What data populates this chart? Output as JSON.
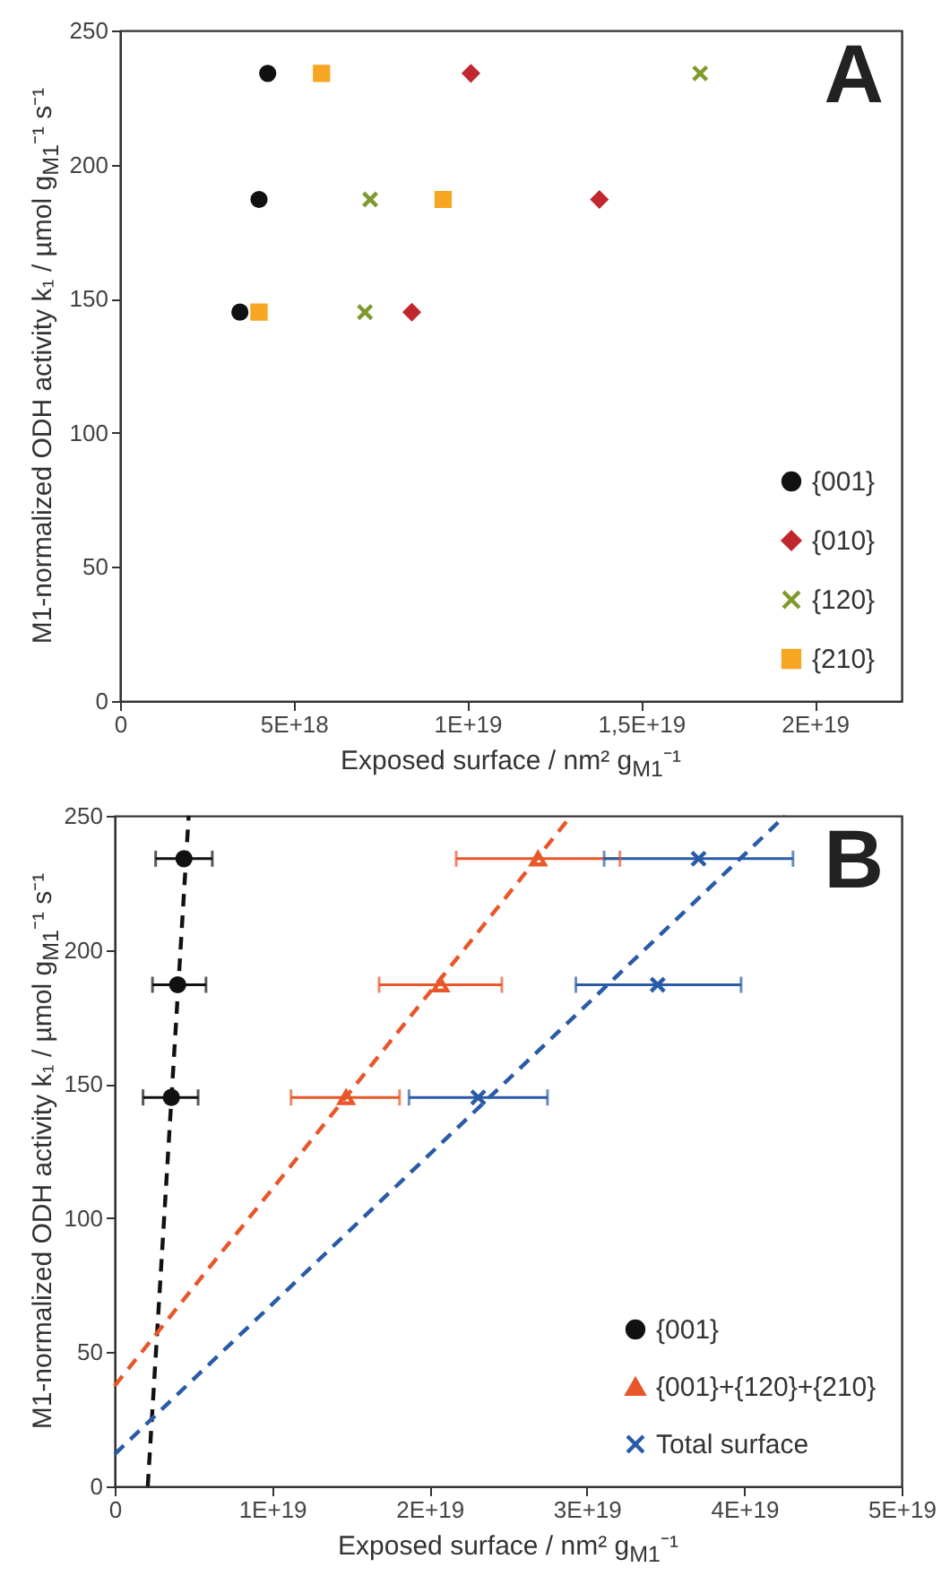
{
  "chart_data": [
    {
      "type": "scatter",
      "xlabel": "Exposed surface / nm² g$_{M1}$⁻¹",
      "ylabel": "M1-normalized ODH activity k₁ / µmol g$_{M1}$⁻¹ s⁻¹",
      "annotations": [
        "A"
      ],
      "legend": "bottom right",
      "xlim": [
        0,
        2.25e+19
      ],
      "xticks": [
        0,
        {
          "value": 5e+18,
          "label": "5E+18"
        },
        {
          "value": 1e+19,
          "label": "1E+19"
        },
        {
          "value": 1.5e+19,
          "label": "1,5E+19"
        },
        {
          "value": 2e+19,
          "label": "2E+19"
        }
      ],
      "ylim": [
        0,
        250
      ],
      "yticks": [
        0,
        50,
        100,
        150,
        200,
        250
      ],
      "series": [
        {
          "name": "{001}",
          "color": "#111111",
          "marker": "circle",
          "x": [
            4.25e+18,
            4e+18,
            3.45e+18
          ],
          "values": [
            234,
            187,
            145
          ]
        },
        {
          "name": "{010}",
          "color": "#c0282d",
          "marker": "diamond",
          "x": [
            1.01e+19,
            1.38e+19,
            8.4e+18
          ],
          "values": [
            234,
            187,
            145
          ]
        },
        {
          "name": "{120}",
          "color": "#7f9a2c",
          "marker": "cross",
          "x": [
            1.67e+19,
            7.2e+18,
            7.05e+18
          ],
          "values": [
            234,
            187,
            145
          ]
        },
        {
          "name": "{210}",
          "color": "#f6a623",
          "marker": "square",
          "x": [
            5.8e+18,
            9.3e+18,
            4e+18
          ],
          "values": [
            234,
            187,
            145
          ]
        }
      ]
    },
    {
      "type": "scatter",
      "xlabel": "Exposed surface / nm² g$_{M1}$⁻¹",
      "ylabel": "M1-normalized ODH activity k₁ / µmol g$_{M1}$⁻¹ s⁻¹",
      "annotations": [
        "B"
      ],
      "legend": "bottom right",
      "xlim": [
        0,
        5e+19
      ],
      "xticks": [
        0,
        {
          "value": 1e+19,
          "label": "1E+19"
        },
        {
          "value": 2e+19,
          "label": "2E+19"
        },
        {
          "value": 3e+19,
          "label": "3E+19"
        },
        {
          "value": 4e+19,
          "label": "4E+19"
        },
        {
          "value": 5e+19,
          "label": "5E+19"
        }
      ],
      "ylim": [
        0,
        250
      ],
      "yticks": [
        0,
        50,
        100,
        150,
        200,
        250
      ],
      "series": [
        {
          "type": "line",
          "color": "#111111",
          "line_style": "dashed",
          "marker": "none",
          "x": [
            2.1e+18,
            4.7e+18
          ],
          "values": [
            0,
            250
          ]
        },
        {
          "type": "line",
          "color": "#e8562a",
          "line_style": "dashed",
          "marker": "none",
          "x": [
            0,
            2.9e+19
          ],
          "values": [
            37.5,
            250
          ]
        },
        {
          "type": "line",
          "color": "#2a5ba8",
          "line_style": "dashed",
          "marker": "none",
          "x": [
            0,
            4.26e+19
          ],
          "values": [
            12,
            250
          ]
        },
        {
          "name": "{001}",
          "color": "#111111",
          "marker": "circle",
          "x": [
            4.4e+18,
            4e+18,
            3.6e+18
          ],
          "values": [
            234,
            187,
            145
          ],
          "xerrors": [
            [
              2.6e+18,
              6.2e+18
            ],
            [
              2.4e+18,
              5.8e+18
            ],
            [
              1.8e+18,
              5.3e+18
            ]
          ]
        },
        {
          "name": "{001}+{120}+{210}",
          "color": "#e8562a",
          "marker": "triangle",
          "x": [
            2.69e+19,
            2.07e+19,
            1.47e+19
          ],
          "values": [
            234,
            187,
            145
          ],
          "xerrors": [
            [
              2.17e+19,
              3.21e+19
            ],
            [
              1.68e+19,
              2.46e+19
            ],
            [
              1.12e+19,
              1.81e+19
            ]
          ]
        },
        {
          "name": "Total surface",
          "color": "#2a5ba8",
          "marker": "cross",
          "x": [
            3.71e+19,
            3.45e+19,
            2.31e+19
          ],
          "values": [
            234,
            187,
            145
          ],
          "xerrors": [
            [
              3.11e+19,
              4.31e+19
            ],
            [
              2.93e+19,
              3.98e+19
            ],
            [
              1.87e+19,
              2.75e+19
            ]
          ]
        }
      ]
    }
  ]
}
